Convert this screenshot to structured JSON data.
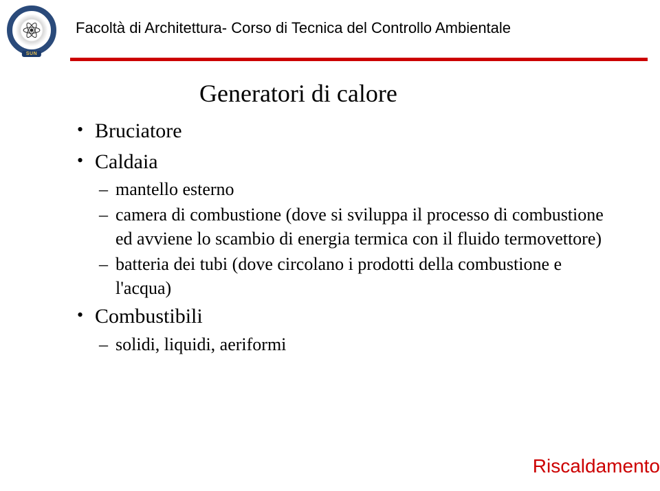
{
  "header": {
    "title": "Facoltà di Architettura- Corso di Tecnica del Controllo Ambientale",
    "logo_sun": "SUN"
  },
  "main_title": "Generatori di calore",
  "bullets": [
    {
      "label": "Bruciatore",
      "subs": []
    },
    {
      "label": "Caldaia",
      "subs": [
        "mantello esterno",
        "camera di combustione (dove si sviluppa il processo di combustione ed avviene lo scambio di energia termica con il fluido termovettore)",
        "batteria dei tubi (dove circolano i prodotti della combustione e l'acqua)"
      ]
    },
    {
      "label": "Combustibili",
      "subs": [
        "solidi, liquidi, aeriformi"
      ]
    }
  ],
  "footer": "Riscaldamento",
  "colors": {
    "accent_red": "#cc0000",
    "logo_navy": "#2a4a7a",
    "logo_gold": "#e8c050",
    "text": "#000000",
    "background": "#ffffff"
  }
}
